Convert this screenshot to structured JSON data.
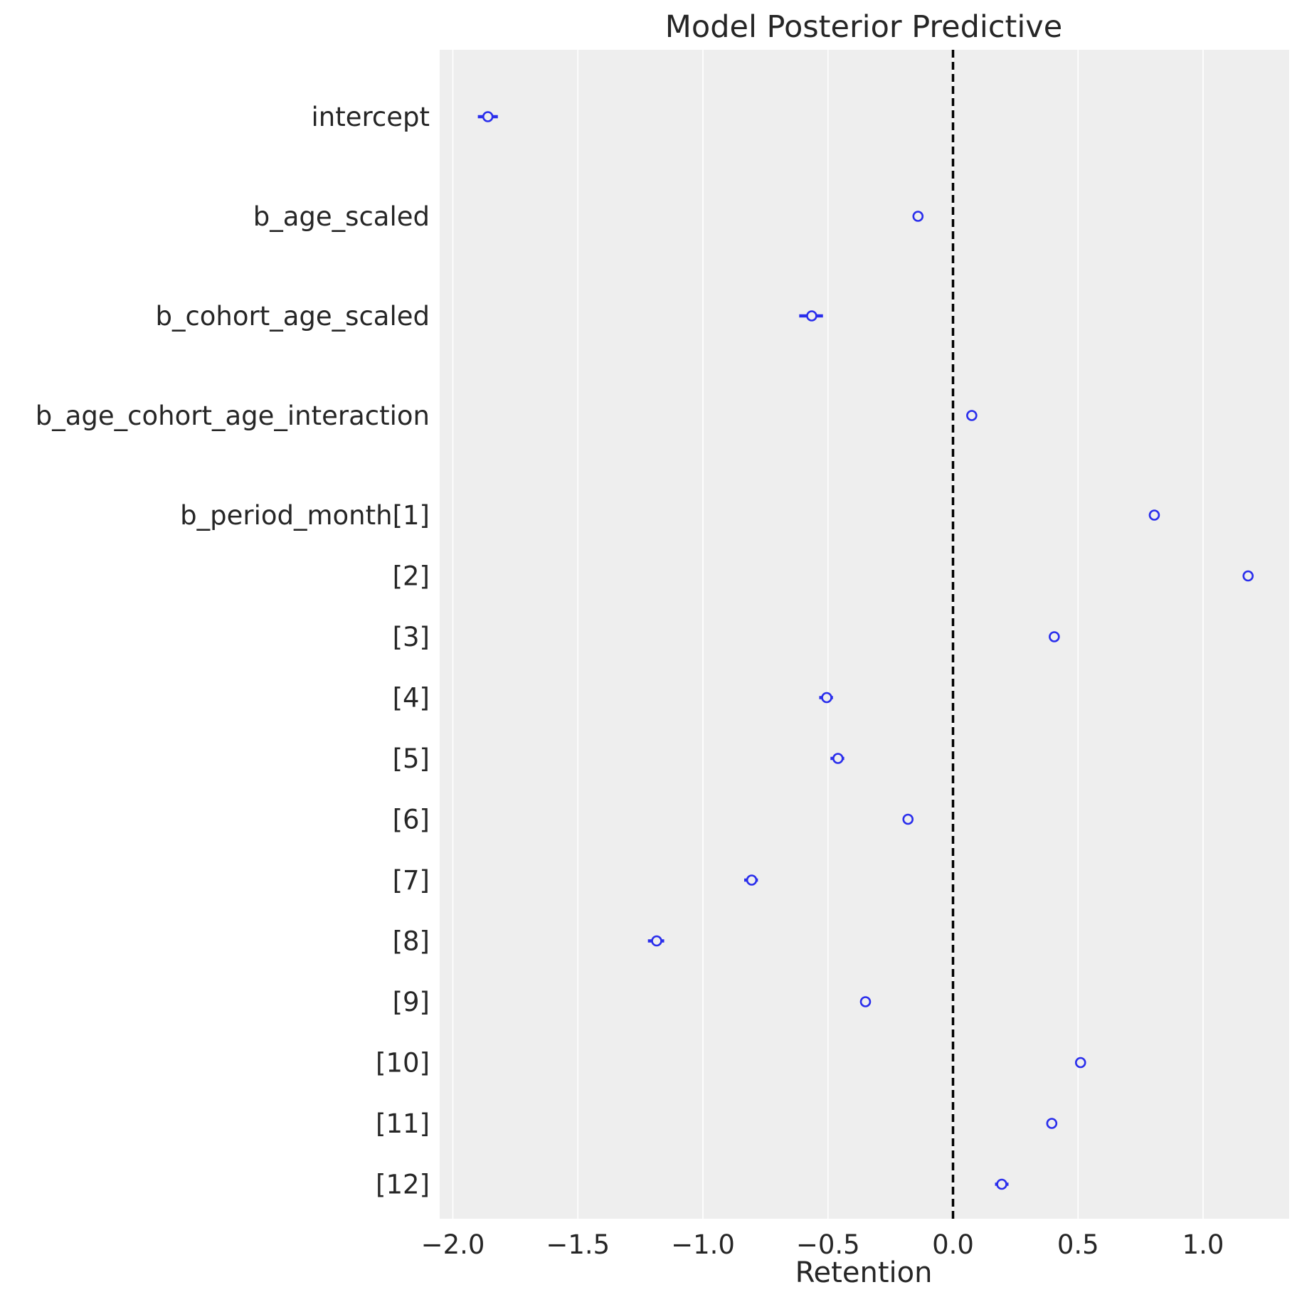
{
  "chart_data": {
    "type": "forest",
    "title": "Model Posterior Predictive",
    "xlabel": "Retention",
    "ylabel": "",
    "xlim": [
      -2.06,
      1.36
    ],
    "xticks": [
      -2.0,
      -1.5,
      -1.0,
      -0.5,
      0.0,
      0.5,
      1.0
    ],
    "xtick_labels": [
      "−2.0",
      "−1.5",
      "−1.0",
      "−0.5",
      "0.0",
      "0.5",
      "1.0"
    ],
    "grid": "vertical",
    "reference_line": 0.0,
    "colors": {
      "background": "#eeeeee",
      "grid": "#ffffff",
      "marker": "#2a2eec",
      "reference": "#000000",
      "text": "#262626"
    },
    "rows": [
      {
        "label": "intercept",
        "mean": -1.86,
        "low": -1.9,
        "high": -1.82,
        "gap_before": 0
      },
      {
        "label": "b_age_scaled",
        "mean": -0.14,
        "low": -0.15,
        "high": -0.13,
        "gap_before": 1
      },
      {
        "label": "b_cohort_age_scaled",
        "mean": -0.565,
        "low": -0.615,
        "high": -0.52,
        "gap_before": 1
      },
      {
        "label": "b_age_cohort_age_interaction",
        "mean": 0.075,
        "low": 0.068,
        "high": 0.082,
        "gap_before": 1
      },
      {
        "label": "b_period_month[1]",
        "mean": 0.805,
        "low": 0.8,
        "high": 0.81,
        "gap_before": 1
      },
      {
        "label": "[2]",
        "mean": 1.18,
        "low": 1.175,
        "high": 1.185,
        "gap_before": 0
      },
      {
        "label": "[3]",
        "mean": 0.405,
        "low": 0.4,
        "high": 0.41,
        "gap_before": 0
      },
      {
        "label": "[4]",
        "mean": -0.505,
        "low": -0.535,
        "high": -0.48,
        "gap_before": 0
      },
      {
        "label": "[5]",
        "mean": -0.46,
        "low": -0.49,
        "high": -0.435,
        "gap_before": 0
      },
      {
        "label": "[6]",
        "mean": -0.18,
        "low": -0.195,
        "high": -0.165,
        "gap_before": 0
      },
      {
        "label": "[7]",
        "mean": -0.805,
        "low": -0.835,
        "high": -0.78,
        "gap_before": 0
      },
      {
        "label": "[8]",
        "mean": -1.185,
        "low": -1.22,
        "high": -1.155,
        "gap_before": 0
      },
      {
        "label": "[9]",
        "mean": -0.35,
        "low": -0.362,
        "high": -0.338,
        "gap_before": 0
      },
      {
        "label": "[10]",
        "mean": 0.51,
        "low": 0.505,
        "high": 0.515,
        "gap_before": 0
      },
      {
        "label": "[11]",
        "mean": 0.395,
        "low": 0.39,
        "high": 0.4,
        "gap_before": 0
      },
      {
        "label": "[12]",
        "mean": 0.195,
        "low": 0.168,
        "high": 0.222,
        "gap_before": 0
      }
    ]
  }
}
